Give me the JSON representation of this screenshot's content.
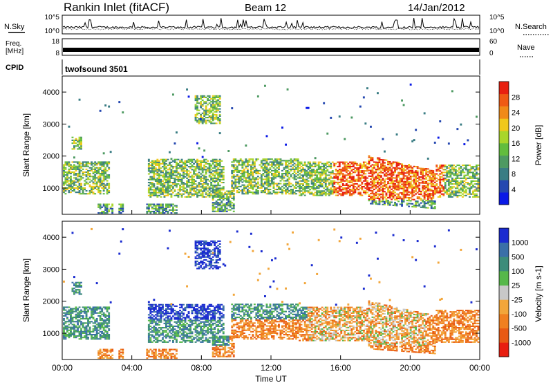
{
  "header": {
    "title": "Rankin Inlet (fitACF)",
    "beam": "Beam 12",
    "date": "14/Jan/2012"
  },
  "left_labels": {
    "nsky": "N.Sky",
    "freq_line1": "Freq.",
    "freq_line2": "[MHz]",
    "cpid": "CPID"
  },
  "right_labels": {
    "nsearch": "N.Search",
    "nave": "Nave"
  },
  "cpid_value": "twofsound 3501",
  "chart_data": [
    {
      "type": "line",
      "name": "noise-panel",
      "y_left_ticks": [
        "10^5",
        "10^0"
      ],
      "y_right_ticks": [
        "10^5",
        "10^0"
      ],
      "x_range_hours": [
        0,
        24
      ]
    },
    {
      "type": "line",
      "name": "frequency-panel",
      "y_left_ticks": [
        "18",
        "8"
      ],
      "y_right_ticks": [
        "60",
        "0"
      ],
      "ylim_left": [
        8,
        18
      ],
      "ylim_right": [
        0,
        60
      ],
      "x_range_hours": [
        0,
        24
      ]
    },
    {
      "type": "heatmap",
      "name": "power-panel",
      "ylabel": "Slant Range [km]",
      "y_ticks": [
        "1000",
        "2000",
        "3000",
        "4000"
      ],
      "ylim": [
        180,
        4500
      ],
      "x_range_hours": [
        0,
        24
      ],
      "colorbar": {
        "label": "Power [dB]",
        "ticks": [
          "4",
          "8",
          "12",
          "16",
          "20",
          "24",
          "28"
        ],
        "colors": [
          "#0b1ae6",
          "#2548b0",
          "#3a7d84",
          "#4e9a62",
          "#62bd3d",
          "#a9d62a",
          "#f0c81a",
          "#f08a18",
          "#ef5a14",
          "#e82010"
        ]
      }
    },
    {
      "type": "heatmap",
      "name": "velocity-panel",
      "ylabel": "Slant Range [km]",
      "y_ticks": [
        "1000",
        "2000",
        "3000",
        "4000"
      ],
      "ylim": [
        180,
        4500
      ],
      "x_range_hours": [
        0,
        24
      ],
      "xlabel": "Time UT",
      "x_ticks": [
        "00:00",
        "04:00",
        "08:00",
        "12:00",
        "16:00",
        "20:00",
        "00:00"
      ],
      "colorbar": {
        "label": "Velocity [m s-1]",
        "ticks": [
          "1000",
          "500",
          "100",
          "25",
          "-25",
          "-100",
          "-500",
          "-1000"
        ],
        "colors": [
          "#1a2bd0",
          "#3a6fa8",
          "#3c8c7a",
          "#56b84a",
          "#c8c8c8",
          "#f2a63a",
          "#f08020",
          "#e85a14",
          "#e81e10"
        ]
      }
    }
  ]
}
